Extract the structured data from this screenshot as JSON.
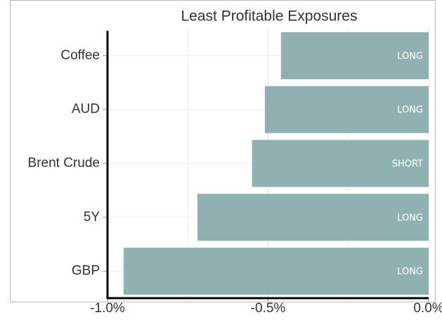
{
  "chart_data": {
    "type": "hbar",
    "title": "Least Profitable Exposures",
    "categories": [
      "Coffee",
      "AUD",
      "Brent Crude",
      "5Y",
      "GBP"
    ],
    "values": [
      -0.46,
      -0.51,
      -0.55,
      -0.72,
      -0.95
    ],
    "bar_labels": [
      "LONG",
      "LONG",
      "SHORT",
      "LONG",
      "LONG"
    ],
    "color": "#8fb1b1",
    "xlim": [
      -1.0,
      0.0
    ],
    "xticks": [
      {
        "value": -1.0,
        "label": "-1.0%"
      },
      {
        "value": -0.5,
        "label": "-0.5%"
      },
      {
        "value": 0.0,
        "label": "0.0%"
      }
    ],
    "minor_xticks": [
      -0.75,
      -0.25
    ],
    "grid": true
  }
}
